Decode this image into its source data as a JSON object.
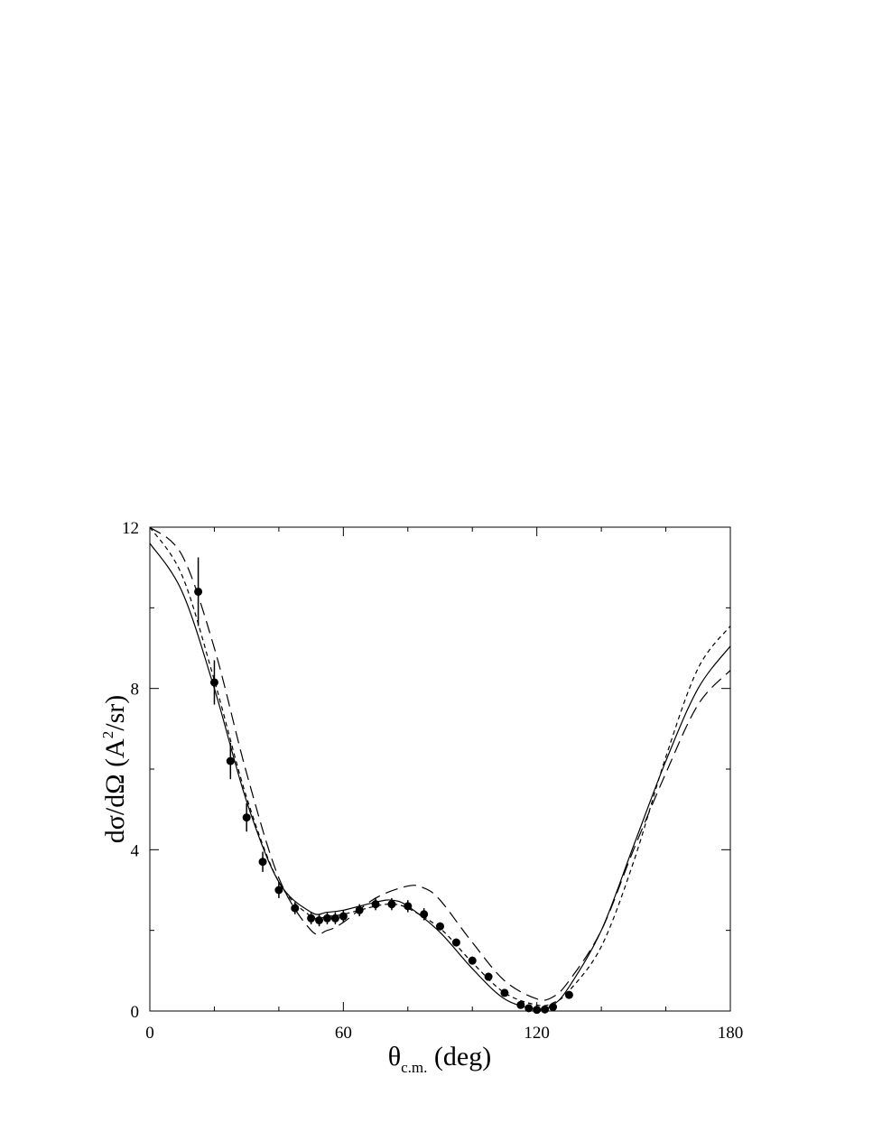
{
  "chart_data": {
    "type": "scatter",
    "xlabel": {
      "symbol": "θ",
      "subscript": "c.m.",
      "rest": " (deg)"
    },
    "ylabel": {
      "main": "dσ/dΩ (A",
      "superscript": "2",
      "rest": "/sr)"
    },
    "xlim": [
      0,
      180
    ],
    "xticks": [
      0,
      60,
      120,
      180
    ],
    "ylim": [
      0,
      12
    ],
    "yticks": [
      0,
      4,
      8,
      12
    ],
    "color": "#000000",
    "x": [
      15,
      20,
      25,
      30,
      35,
      40,
      45,
      50,
      52.5,
      55,
      57.5,
      60,
      65,
      70,
      75,
      80,
      85,
      90,
      95,
      100,
      105,
      110,
      115,
      117.5,
      120,
      122.5,
      125,
      130
    ],
    "values": [
      10.4,
      8.15,
      6.2,
      4.8,
      3.7,
      3.0,
      2.55,
      2.3,
      2.25,
      2.3,
      2.3,
      2.35,
      2.5,
      2.65,
      2.65,
      2.6,
      2.4,
      2.1,
      1.7,
      1.25,
      0.85,
      0.45,
      0.15,
      0.07,
      0.03,
      0.04,
      0.1,
      0.4
    ],
    "errors": [
      0.85,
      0.55,
      0.45,
      0.35,
      0.25,
      0.2,
      0.15,
      0.15,
      0.15,
      0.15,
      0.15,
      0.15,
      0.15,
      0.15,
      0.15,
      0.15,
      0.15,
      0.1,
      0.1,
      0.1,
      0.1,
      0.05,
      0.05,
      0.05,
      0.05,
      0.05,
      0.05,
      0.05
    ],
    "series": [
      {
        "color": "#000000",
        "dash": "solid",
        "x": [
          0,
          10,
          20,
          30,
          40,
          50,
          55,
          60,
          70,
          75,
          80,
          90,
          100,
          110,
          120,
          125,
          130,
          140,
          150,
          160,
          170,
          180
        ],
        "values": [
          11.6,
          10.4,
          8.0,
          5.2,
          3.2,
          2.45,
          2.45,
          2.5,
          2.7,
          2.75,
          2.6,
          1.95,
          1.05,
          0.3,
          0.05,
          0.15,
          0.6,
          2.0,
          4.1,
          6.2,
          8.0,
          9.05
        ]
      },
      {
        "color": "#000000",
        "dash": "long-dash",
        "x": [
          0,
          10,
          20,
          30,
          40,
          50,
          55,
          60,
          70,
          80,
          85,
          90,
          100,
          110,
          120,
          125,
          130,
          140,
          150,
          160,
          170,
          180
        ],
        "values": [
          12.0,
          11.3,
          9.0,
          5.9,
          3.3,
          2.0,
          2.0,
          2.2,
          2.8,
          3.1,
          3.05,
          2.75,
          1.7,
          0.75,
          0.3,
          0.35,
          0.75,
          2.0,
          4.0,
          5.9,
          7.6,
          8.45
        ]
      },
      {
        "color": "#000000",
        "dash": "short-dash",
        "x": [
          0,
          10,
          20,
          30,
          40,
          50,
          55,
          60,
          70,
          75,
          80,
          90,
          100,
          110,
          120,
          125,
          130,
          140,
          150,
          160,
          170,
          180
        ],
        "values": [
          12.0,
          10.8,
          8.2,
          5.3,
          3.2,
          2.35,
          2.35,
          2.4,
          2.6,
          2.65,
          2.55,
          2.05,
          1.2,
          0.45,
          0.15,
          0.2,
          0.5,
          1.6,
          3.7,
          6.3,
          8.5,
          9.55
        ]
      }
    ]
  }
}
